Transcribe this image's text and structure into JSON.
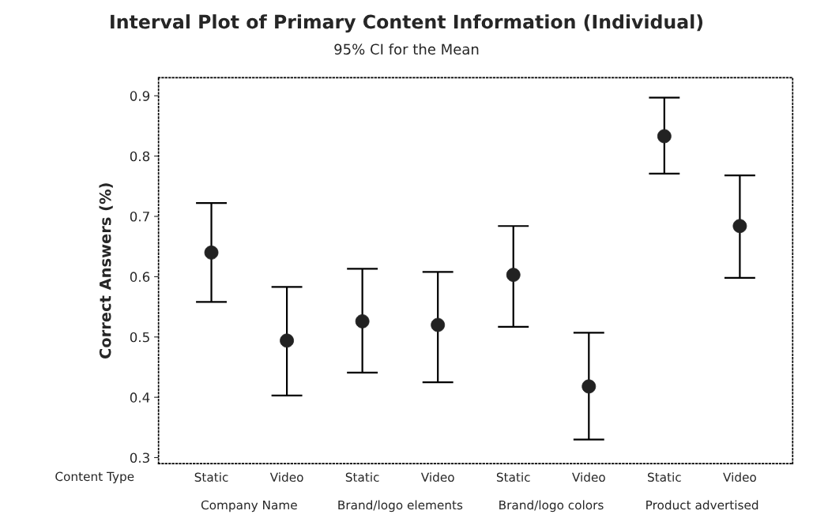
{
  "chart_data": {
    "type": "scatter",
    "title": "Interval Plot of Primary Content Information (Individual)",
    "subtitle": "95% CI for the Mean",
    "ylabel": "Correct Answers (%)",
    "categories": [
      "Static",
      "Video",
      "Static",
      "Video",
      "Static",
      "Video",
      "Static",
      "Video"
    ],
    "annotations": [
      "Content Type",
      "Company Name",
      "Brand/logo elements",
      "Brand/logo colors",
      "Product advertised"
    ],
    "series": [
      {
        "color": "#222222",
        "values": [
          0.64,
          0.494,
          0.526,
          0.52,
          0.603,
          0.418,
          0.833,
          0.684
        ],
        "errors": [
          [
            0.558,
            0.722
          ],
          [
            0.403,
            0.583
          ],
          [
            0.441,
            0.613
          ],
          [
            0.425,
            0.608
          ],
          [
            0.517,
            0.684
          ],
          [
            0.33,
            0.507
          ],
          [
            0.771,
            0.897
          ],
          [
            0.598,
            0.768
          ]
        ]
      }
    ],
    "ylim": [
      0.29,
      0.93
    ],
    "yticks": [
      0.3,
      0.4,
      0.5,
      0.6,
      0.7,
      0.8,
      0.9
    ],
    "marker": "circle",
    "grid": false,
    "legend": false
  }
}
